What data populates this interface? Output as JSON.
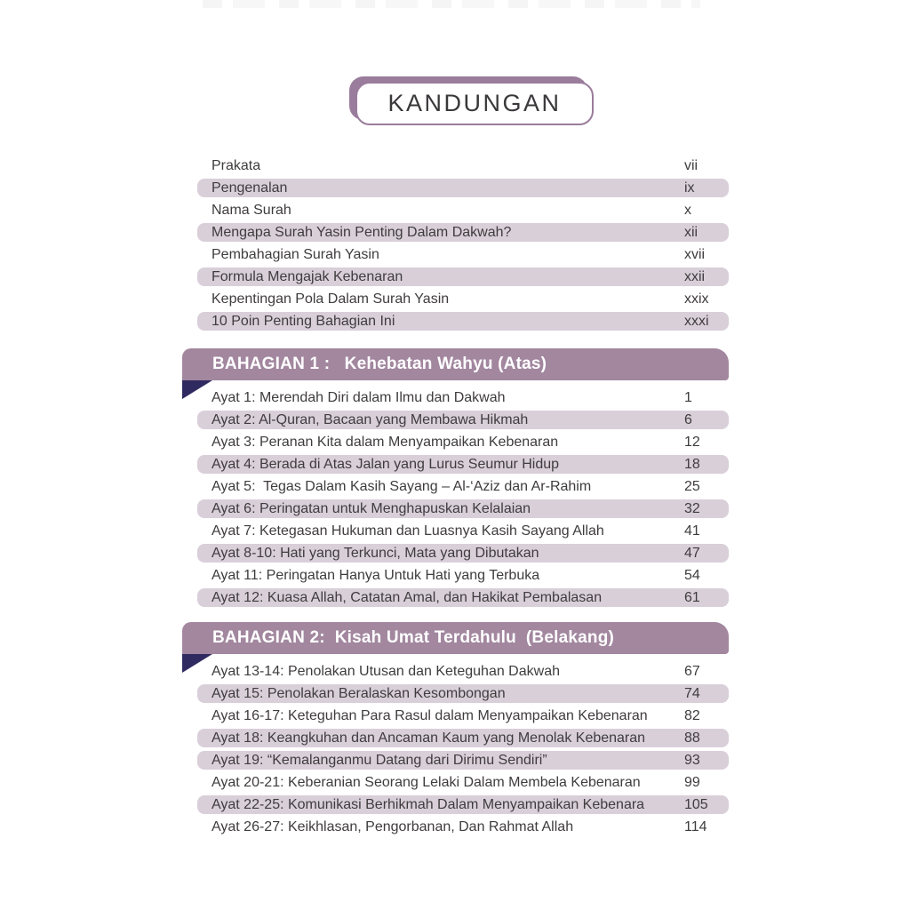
{
  "page_title": "KANDUNGAN",
  "colors": {
    "band": "#a2879f",
    "row_shade": "#d9cfd9",
    "fold": "#2f2b60",
    "title_border": "#9a7c9c",
    "text": "#3f3c3e",
    "band_text": "#ffffff"
  },
  "front_matter": [
    {
      "label": "Prakata",
      "page": "vii",
      "shaded": false
    },
    {
      "label": "Pengenalan",
      "page": "ix",
      "shaded": true
    },
    {
      "label": "Nama Surah",
      "page": "x",
      "shaded": false
    },
    {
      "label": "Mengapa Surah Yasin Penting Dalam Dakwah?",
      "page": "xii",
      "shaded": true
    },
    {
      "label": "Pembahagian Surah Yasin",
      "page": "xvii",
      "shaded": false
    },
    {
      "label": "Formula Mengajak Kebenaran",
      "page": "xxii",
      "shaded": true
    },
    {
      "label": "Kepentingan Pola Dalam Surah Yasin",
      "page": "xxix",
      "shaded": false
    },
    {
      "label": "10 Poin Penting Bahagian Ini",
      "page": "xxxi",
      "shaded": true
    }
  ],
  "sections": [
    {
      "heading": "BAHAGIAN 1 :   Kehebatan Wahyu (Atas)",
      "items": [
        {
          "label": "Ayat 1: Merendah Diri dalam Ilmu dan Dakwah",
          "page": "1",
          "shaded": false
        },
        {
          "label": "Ayat 2: Al-Quran, Bacaan yang Membawa Hikmah",
          "page": "6",
          "shaded": true
        },
        {
          "label": "Ayat 3: Peranan Kita dalam Menyampaikan Kebenaran",
          "page": "12",
          "shaded": false
        },
        {
          "label": "Ayat 4: Berada di Atas Jalan yang Lurus Seumur Hidup",
          "page": "18",
          "shaded": true
        },
        {
          "label": "Ayat 5:  Tegas Dalam Kasih Sayang – Al-‘Aziz dan Ar-Rahim",
          "page": "25",
          "shaded": false
        },
        {
          "label": "Ayat 6: Peringatan untuk Menghapuskan Kelalaian",
          "page": "32",
          "shaded": true
        },
        {
          "label": "Ayat 7: Ketegasan Hukuman dan Luasnya Kasih Sayang Allah",
          "page": "41",
          "shaded": false
        },
        {
          "label": "Ayat 8-10: Hati yang Terkunci, Mata yang Dibutakan",
          "page": "47",
          "shaded": true
        },
        {
          "label": "Ayat 11: Peringatan Hanya Untuk Hati yang Terbuka",
          "page": "54",
          "shaded": false
        },
        {
          "label": "Ayat 12: Kuasa Allah, Catatan Amal, dan Hakikat Pembalasan",
          "page": "61",
          "shaded": true
        }
      ]
    },
    {
      "heading": "BAHAGIAN 2:  Kisah Umat Terdahulu  (Belakang)",
      "items": [
        {
          "label": "Ayat 13-14: Penolakan Utusan dan Keteguhan Dakwah",
          "page": "67",
          "shaded": false
        },
        {
          "label": "Ayat 15: Penolakan Beralaskan Kesombongan",
          "page": "74",
          "shaded": true
        },
        {
          "label": "Ayat 16-17: Keteguhan Para Rasul dalam Menyampaikan Kebenaran",
          "page": "82",
          "shaded": false
        },
        {
          "label": "Ayat 18: Keangkuhan dan Ancaman Kaum yang Menolak Kebenaran",
          "page": "88",
          "shaded": true
        },
        {
          "label": "Ayat 19: “Kemalanganmu Datang dari Dirimu Sendiri”",
          "page": "93",
          "shaded": true
        },
        {
          "label": "Ayat 20-21: Keberanian Seorang Lelaki Dalam Membela Kebenaran",
          "page": "99",
          "shaded": false
        },
        {
          "label": "Ayat 22-25: Komunikasi Berhikmah Dalam Menyampaikan Kebenara",
          "page": "105",
          "shaded": true
        },
        {
          "label": "Ayat 26-27: Keikhlasan, Pengorbanan, Dan Rahmat Allah",
          "page": "114",
          "shaded": false
        }
      ]
    }
  ]
}
